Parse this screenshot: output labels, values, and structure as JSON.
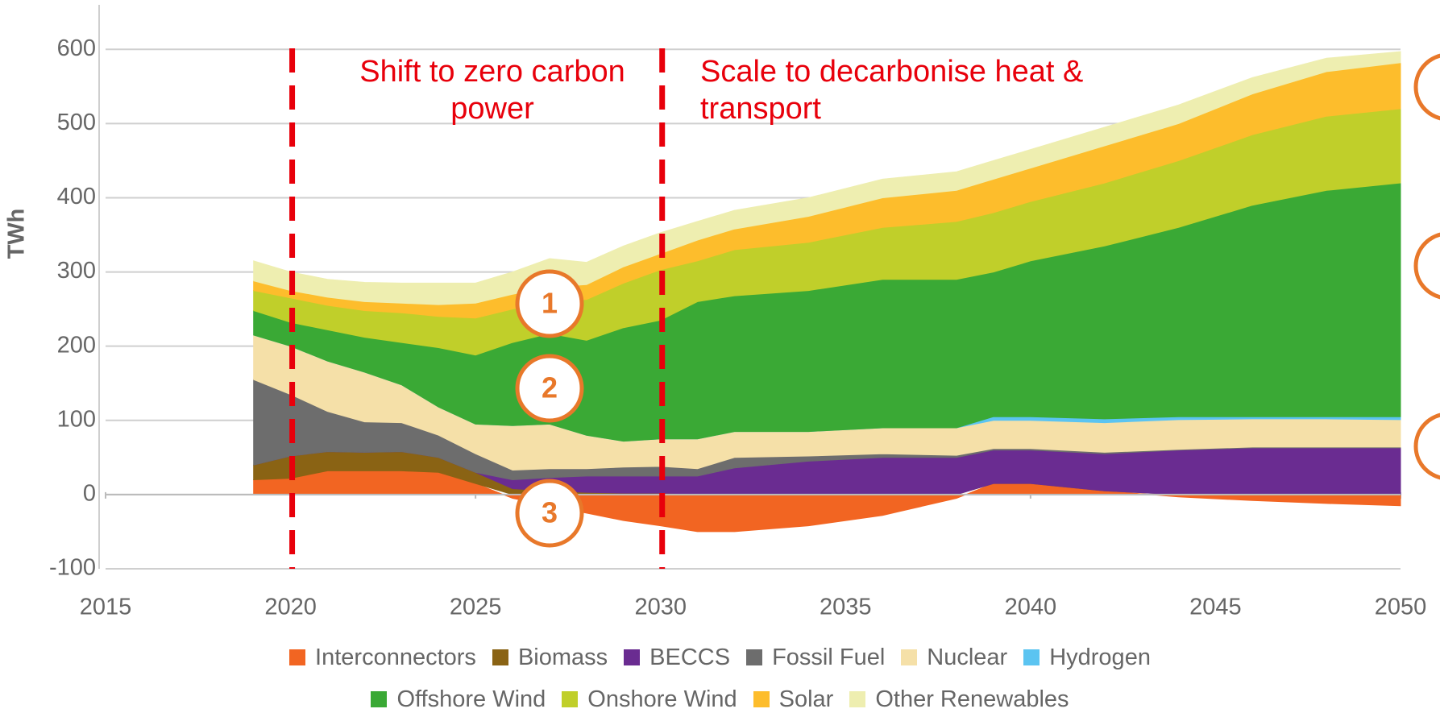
{
  "chart_data": {
    "type": "stacked_area",
    "y_label": "TWh",
    "xlim": [
      2015,
      2050
    ],
    "xticks": [
      2015,
      2020,
      2025,
      2030,
      2035,
      2040,
      2045,
      2050
    ],
    "ylim": [
      -100,
      660
    ],
    "yticks": [
      -100,
      0,
      100,
      200,
      300,
      400,
      500,
      600
    ],
    "grid": true,
    "vlines": [
      2020,
      2030
    ],
    "annotations": [
      {
        "lines": [
          "Shift to zero carbon",
          "power"
        ]
      },
      {
        "lines": [
          "Scale to decarbonise heat &",
          "transport"
        ]
      }
    ],
    "markers": [
      "1",
      "2",
      "3"
    ],
    "x": [
      2019,
      2020,
      2021,
      2022,
      2023,
      2024,
      2025,
      2026,
      2027,
      2028,
      2029,
      2030,
      2031,
      2032,
      2034,
      2036,
      2038,
      2039,
      2040,
      2042,
      2044,
      2046,
      2048,
      2050
    ],
    "series": [
      {
        "name": "Interconnectors",
        "color": "#f26522",
        "values": [
          20,
          22,
          32,
          32,
          32,
          30,
          15,
          -5,
          -15,
          -25,
          -35,
          -42,
          -50,
          -50,
          -42,
          -28,
          -5,
          15,
          15,
          5,
          -3,
          -8,
          -12,
          -15
        ]
      },
      {
        "name": "Biomass",
        "color": "#8a6314",
        "values": [
          20,
          30,
          26,
          25,
          26,
          20,
          15,
          8,
          5,
          3,
          2,
          2,
          1,
          1,
          1,
          0,
          0,
          0,
          0,
          0,
          0,
          0,
          0,
          0
        ]
      },
      {
        "name": "BECCS",
        "color": "#6a2c91",
        "values": [
          0,
          0,
          0,
          0,
          0,
          0,
          0,
          12,
          18,
          22,
          23,
          23,
          24,
          35,
          44,
          50,
          50,
          45,
          45,
          50,
          60,
          63,
          63,
          63
        ]
      },
      {
        "name": "Fossil Fuel",
        "color": "#6d6d6d",
        "values": [
          115,
          83,
          54,
          41,
          39,
          30,
          25,
          13,
          12,
          10,
          12,
          13,
          10,
          14,
          7,
          5,
          3,
          2,
          2,
          2,
          1,
          1,
          1,
          1
        ]
      },
      {
        "name": "Nuclear",
        "color": "#f5e0a8",
        "values": [
          60,
          65,
          68,
          67,
          51,
          38,
          40,
          60,
          60,
          45,
          35,
          37,
          40,
          35,
          33,
          35,
          37,
          38,
          38,
          40,
          40,
          38,
          38,
          37
        ]
      },
      {
        "name": "Hydrogen",
        "color": "#5bc4f1",
        "values": [
          0,
          0,
          0,
          0,
          0,
          0,
          0,
          0,
          0,
          0,
          0,
          0,
          0,
          0,
          0,
          0,
          0,
          5,
          5,
          5,
          4,
          3,
          3,
          4
        ]
      },
      {
        "name": "Offshore Wind",
        "color": "#3aa935",
        "values": [
          33,
          32,
          42,
          47,
          57,
          80,
          93,
          112,
          122,
          128,
          153,
          160,
          185,
          183,
          190,
          200,
          200,
          195,
          210,
          233,
          255,
          285,
          305,
          315
        ]
      },
      {
        "name": "Onshore Wind",
        "color": "#c0cf2a",
        "values": [
          27,
          33,
          33,
          36,
          40,
          42,
          50,
          45,
          45,
          55,
          60,
          68,
          55,
          62,
          65,
          70,
          78,
          80,
          80,
          85,
          90,
          95,
          100,
          100
        ]
      },
      {
        "name": "Solar",
        "color": "#fdbd2c",
        "values": [
          13,
          10,
          11,
          12,
          13,
          16,
          20,
          20,
          18,
          20,
          22,
          22,
          28,
          28,
          35,
          40,
          42,
          45,
          45,
          50,
          50,
          55,
          60,
          62
        ]
      },
      {
        "name": "Other Renewables",
        "color": "#eeeeb0",
        "values": [
          27,
          25,
          24,
          26,
          27,
          29,
          27,
          30,
          38,
          30,
          28,
          28,
          25,
          25,
          25,
          25,
          25,
          25,
          25,
          25,
          25,
          22,
          18,
          15
        ]
      }
    ]
  }
}
